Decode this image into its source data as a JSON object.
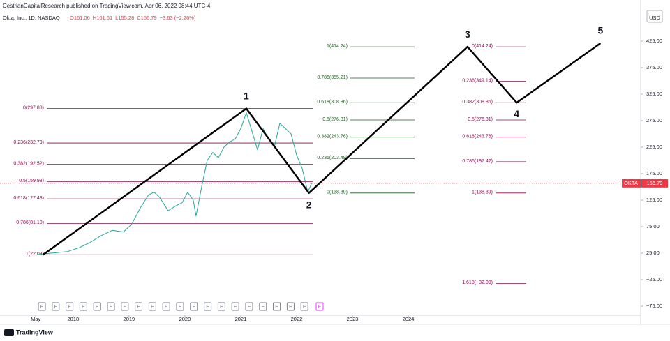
{
  "chart_data": {
    "type": "line",
    "title": "CestrianCapitalResearch published on TradingView.com, Apr 06, 2022 08:44 UTC-4",
    "instrument": "Okta, Inc., 1D, NASDAQ",
    "ohlc": [
      "O161.06",
      "H161.61",
      "L155.28",
      "C156.79",
      "−3.63 (−2.26%)"
    ],
    "currency": "USD",
    "brand": "TradingView",
    "xlim": [
      2016.69,
      2028.16
    ],
    "ylim": [
      -92.1,
      478.9
    ],
    "xticks": [
      {
        "value": 2017.33,
        "label": "May"
      },
      2018,
      2019,
      2020,
      2021,
      2022,
      2023,
      2024
    ],
    "yticks": [
      {
        "value": 425,
        "label": "425.00"
      },
      {
        "value": 375,
        "label": "375.00"
      },
      {
        "value": 325,
        "label": "325.00"
      },
      {
        "value": 275,
        "label": "275.00"
      },
      {
        "value": 225,
        "label": "225.00"
      },
      {
        "value": 175,
        "label": "175.00"
      },
      {
        "value": 125,
        "label": "125.00"
      },
      {
        "value": 75,
        "label": "75.00"
      },
      {
        "value": 25,
        "label": "25.00"
      },
      {
        "value": -25,
        "label": "−25.00"
      },
      {
        "value": -75,
        "label": "−75.00"
      }
    ],
    "series": [
      {
        "color": "#26a69a",
        "x": [
          2017.35,
          2017.6,
          2017.9,
          2018.1,
          2018.3,
          2018.5,
          2018.7,
          2018.9,
          2019.05,
          2019.2,
          2019.35,
          2019.45,
          2019.55,
          2019.7,
          2019.85,
          2019.95,
          2020.05,
          2020.15,
          2020.2,
          2020.3,
          2020.4,
          2020.5,
          2020.6,
          2020.7,
          2020.8,
          2020.9,
          2021.0,
          2021.1,
          2021.2,
          2021.3,
          2021.4,
          2021.5,
          2021.6,
          2021.7,
          2021.8,
          2021.9,
          2022.0,
          2022.1,
          2022.2,
          2022.27
        ],
        "values": [
          22,
          25,
          28,
          35,
          45,
          58,
          68,
          65,
          80,
          110,
          135,
          140,
          130,
          105,
          115,
          120,
          140,
          125,
          95,
          150,
          200,
          215,
          205,
          225,
          235,
          240,
          260,
          290,
          255,
          220,
          260,
          240,
          225,
          270,
          260,
          250,
          210,
          185,
          140,
          156.79
        ]
      },
      {
        "color": "#000000",
        "x": [
          2017.46,
          2021.1,
          2022.22,
          2025.06,
          2025.94,
          2027.44
        ],
        "values": [
          22.03,
          297.88,
          138.39,
          414.24,
          308.86,
          421
        ]
      }
    ],
    "wave_labels": [
      "1",
      "2",
      "3",
      "4",
      "5"
    ],
    "last_price": {
      "symbol": "OKTA",
      "value": 156.79,
      "color": "#f23645"
    },
    "fib_sets": [
      {
        "color": "#880e4f",
        "levels": [
          {
            "label": "0(297.88)",
            "value": 297.88
          },
          {
            "label": "0.236(232.79)",
            "value": 232.79
          },
          {
            "label": "0.382(192.52)",
            "value": 192.52
          },
          {
            "label": "0.5(159.98)",
            "value": 159.98
          },
          {
            "label": "0.618(127.43)",
            "value": 127.43
          },
          {
            "label": "0.786(81.10)",
            "value": 81.1
          },
          {
            "label": "1(22.03)",
            "value": 22.03
          }
        ]
      },
      {
        "color": "#1b5e20",
        "levels": [
          {
            "label": "1(414.24)",
            "value": 414.24
          },
          {
            "label": "0.786(355.21)",
            "value": 355.21
          },
          {
            "label": "0.618(308.86)",
            "value": 308.86
          },
          {
            "label": "0.5(276.31)",
            "value": 276.31
          },
          {
            "label": "0.382(243.76)",
            "value": 243.76
          },
          {
            "label": "0.236(203.49)",
            "value": 203.49
          },
          {
            "label": "0(138.39)",
            "value": 138.39
          }
        ]
      },
      {
        "color": "#880e4f",
        "levels": [
          {
            "label": "0(414.24)",
            "value": 414.24
          },
          {
            "label": "0.236(349.14)",
            "value": 349.14
          },
          {
            "label": "0.382(308.86)",
            "value": 308.86
          },
          {
            "label": "0.5(276.31)",
            "value": 276.31
          },
          {
            "label": "0.618(243.76)",
            "value": 243.76
          },
          {
            "label": "0.786(197.42)",
            "value": 197.42
          },
          {
            "label": "1(138.39)",
            "value": 138.39
          },
          {
            "label": "1.618(−32.09)",
            "value": -32.09
          }
        ]
      }
    ],
    "earnings": [
      "E",
      "E",
      "E",
      "E",
      "E",
      "E",
      "E",
      "E",
      "E",
      "E",
      "E",
      "E",
      "E",
      "E",
      "E",
      "E",
      "E",
      "E",
      "E",
      "E",
      "E"
    ]
  }
}
